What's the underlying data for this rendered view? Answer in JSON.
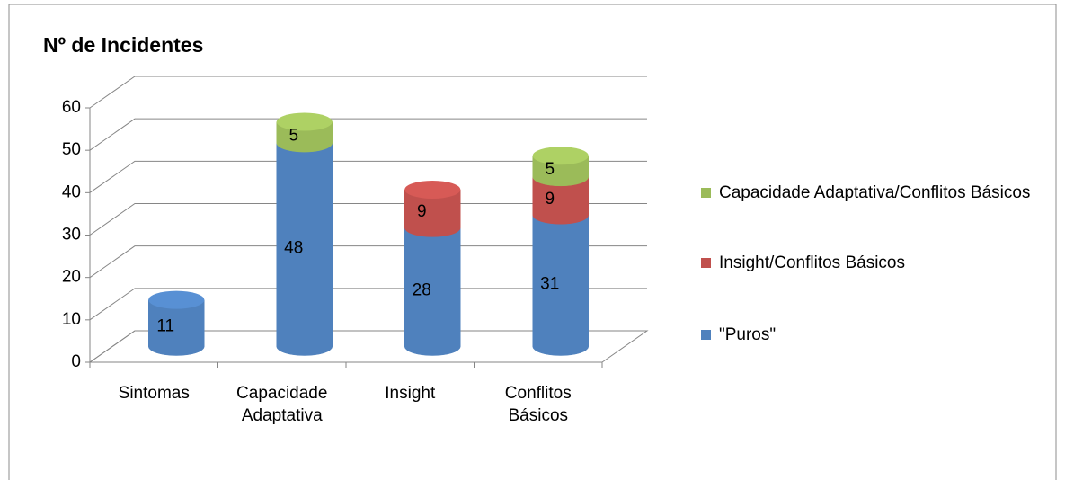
{
  "chart_data": {
    "type": "bar3d_stacked",
    "title": "Nº de Incidentes",
    "categories": [
      "Sintomas",
      "Capacidade Adaptativa",
      "Insight",
      "Conflitos Básicos"
    ],
    "series": [
      {
        "name": "\"Puros\"",
        "color": "#4f81bd",
        "values": [
          11,
          48,
          28,
          31
        ]
      },
      {
        "name": "Insight/Conflitos Básicos",
        "color": "#c0504d",
        "values": [
          null,
          null,
          9,
          9
        ]
      },
      {
        "name": "Capacidade Adaptativa/Conflitos Básicos",
        "color": "#9bbb59",
        "values": [
          null,
          5,
          null,
          5
        ]
      }
    ],
    "ylim": [
      0,
      60
    ],
    "yticks": [
      0,
      10,
      20,
      30,
      40,
      50,
      60
    ],
    "grid": true,
    "legend": "right"
  }
}
